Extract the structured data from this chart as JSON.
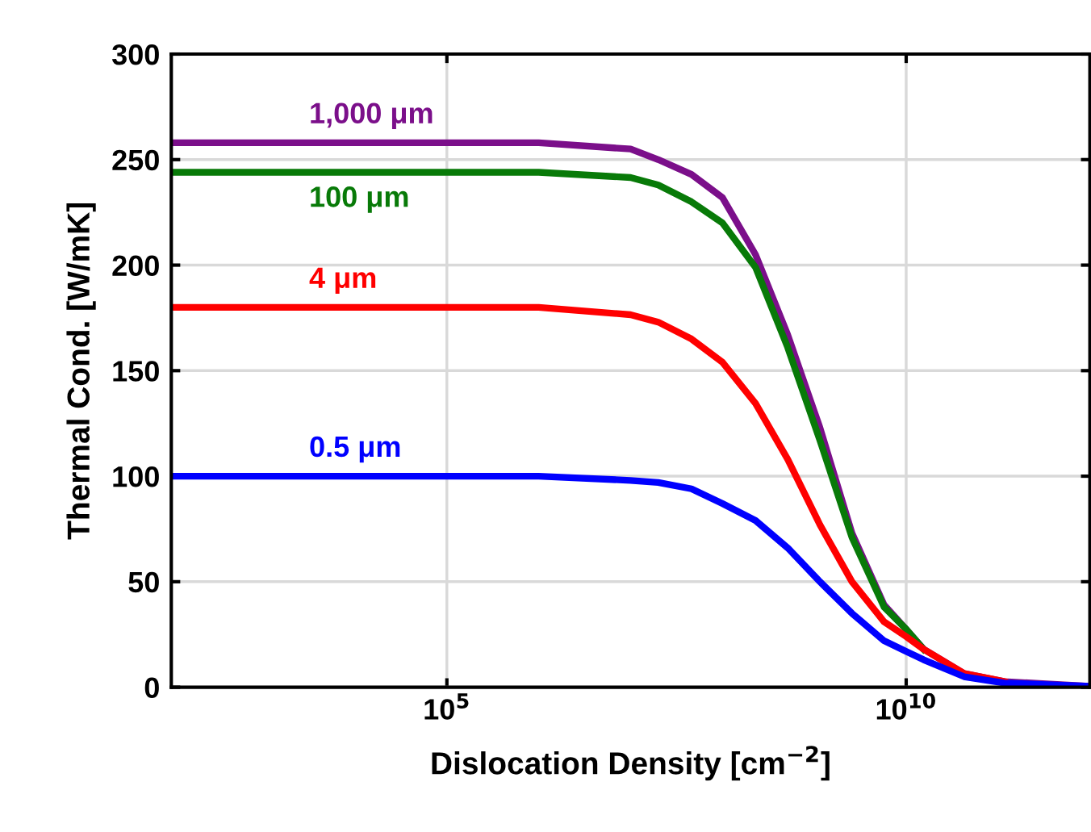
{
  "chart_data": {
    "type": "line",
    "xlabel": "Dislocation Density [cm$^{−2}$]",
    "ylabel": "Thermal Cond. [W/mK]",
    "log": "x",
    "xlim": [
      100,
      1000000000000
    ],
    "xticks": [
      {
        "value": 100000,
        "label": "10$^{5}$"
      },
      {
        "value": 10000000000,
        "label": "10$^{10}$"
      }
    ],
    "ylim": [
      0,
      300
    ],
    "yticks": [
      0,
      50,
      100,
      150,
      200,
      250,
      300
    ],
    "grid": true,
    "line_style": "solid",
    "marker": "none",
    "x": [
      100,
      1000000,
      10000000,
      20000000,
      46000000,
      100000000,
      229000000,
      513000000,
      1150000000,
      2570000000,
      5750000000,
      10000000000,
      15500000000,
      42700000000,
      117000000000,
      912000000000
    ],
    "series": [
      {
        "name": "1,000 μm",
        "color": "#7b0f8a",
        "values": [
          258,
          258,
          255,
          250,
          243,
          232,
          205,
          167,
          123,
          73,
          39,
          27.5,
          18,
          6.5,
          2.7,
          0.5
        ]
      },
      {
        "name": "100 μm",
        "color": "#087a08",
        "values": [
          244,
          244,
          241.5,
          238,
          230,
          220,
          199,
          161,
          117,
          71,
          38,
          27.5,
          18,
          null,
          null,
          null
        ]
      },
      {
        "name": "4 μm",
        "color": "#ff0000",
        "values": [
          180,
          180,
          176.5,
          173,
          165,
          154,
          134.5,
          108,
          77,
          50,
          31,
          24,
          18,
          6.5,
          2.7,
          null
        ]
      },
      {
        "name": "0.5 μm",
        "color": "#0000ff",
        "values": [
          100,
          100,
          98,
          97,
          94,
          87,
          79,
          66,
          50,
          35,
          22,
          17,
          13,
          5,
          2,
          0.5
        ]
      }
    ]
  }
}
